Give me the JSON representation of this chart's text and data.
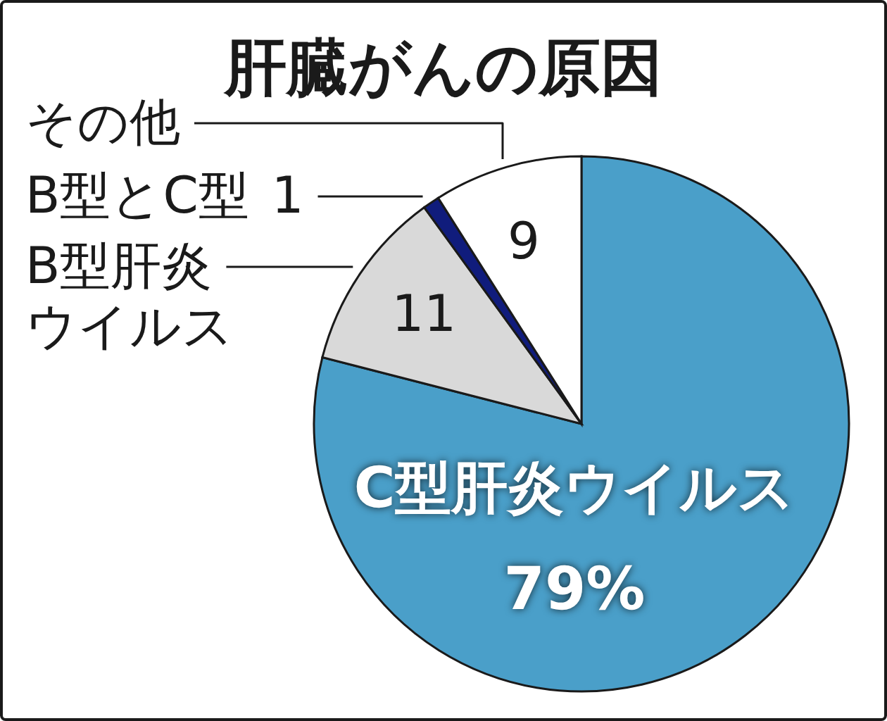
{
  "chart_data": {
    "type": "pie",
    "title": "肝臓がんの原因",
    "categories": [
      "C型肝炎ウイルス",
      "B型肝炎ウイルス",
      "B型とC型",
      "その他"
    ],
    "values": [
      79,
      11,
      1,
      9
    ],
    "colors": [
      "#4a9fc9",
      "#d9d9d9",
      "#101c7c",
      "#ffffff"
    ],
    "value_labels": [
      "79%",
      "11",
      "1",
      "9"
    ]
  }
}
